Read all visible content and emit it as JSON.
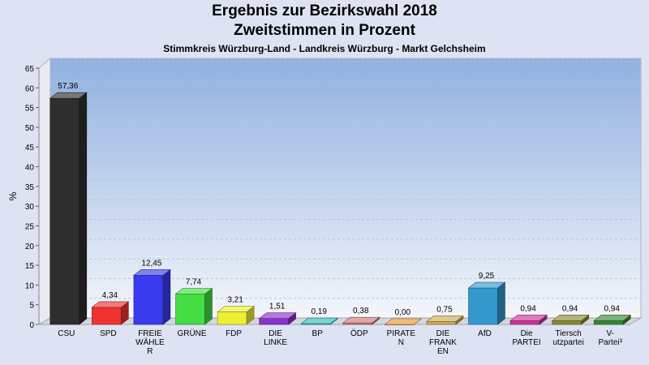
{
  "chart_data": {
    "type": "bar",
    "title": "Ergebnis zur Bezirkswahl 2018",
    "subtitle_line": "Zweitstimmen in Prozent",
    "subtitle": "Stimmkreis Würzburg-Land - Landkreis Würzburg - Markt Gelchsheim",
    "xlabel": "",
    "ylabel": "%",
    "ylim": [
      0,
      65
    ],
    "yticks": [
      0,
      5,
      10,
      15,
      20,
      25,
      30,
      35,
      40,
      45,
      50,
      55,
      60,
      65
    ],
    "grid": true,
    "categories": [
      [
        "CSU"
      ],
      [
        "SPD"
      ],
      [
        "FREIE",
        "WÄHLE",
        "R"
      ],
      [
        "GRÜNE"
      ],
      [
        "FDP"
      ],
      [
        "DIE",
        "LINKE"
      ],
      [
        "BP"
      ],
      [
        "ÖDP"
      ],
      [
        "PIRATE",
        "N"
      ],
      [
        "DIE",
        "FRANK",
        "EN"
      ],
      [
        "AfD"
      ],
      [
        "Die",
        "PARTEI"
      ],
      [
        "Tiersch",
        "utzpartei"
      ],
      [
        "V-",
        "Partei³"
      ]
    ],
    "values": [
      57.36,
      4.34,
      12.45,
      7.74,
      3.21,
      1.51,
      0.19,
      0.38,
      0.0,
      0.75,
      9.25,
      0.94,
      0.94,
      0.94
    ],
    "value_labels": [
      "57,36",
      "4,34",
      "12,45",
      "7,74",
      "3,21",
      "1,51",
      "0,19",
      "0,38",
      "0,00",
      "0,75",
      "9,25",
      "0,94",
      "0,94",
      "0,94"
    ],
    "colors": [
      "#2e2e2e",
      "#ee3333",
      "#3a3aee",
      "#44dd44",
      "#eeee33",
      "#8833cc",
      "#33bbbb",
      "#cc7777",
      "#ee9933",
      "#ccaa55",
      "#3399cc",
      "#cc3399",
      "#888833",
      "#338833"
    ]
  }
}
